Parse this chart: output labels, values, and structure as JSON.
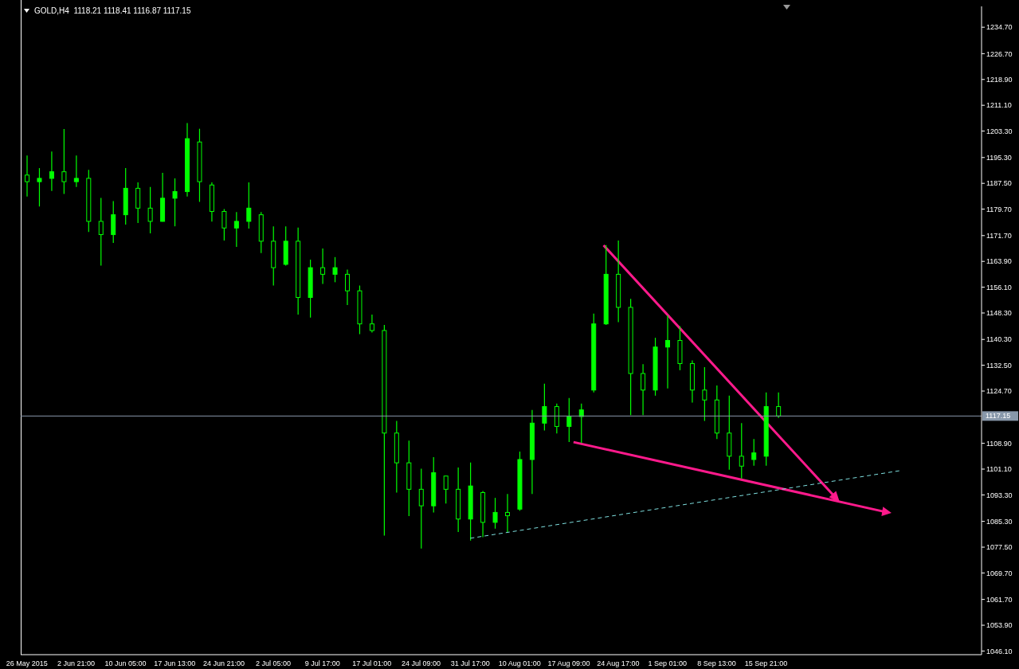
{
  "chart_data": {
    "type": "candlestick",
    "title": "GOLD,H4  1118.21 1118.41 1116.87 1117.15",
    "categories": [
      "26 May 2015",
      null,
      null,
      null,
      "2 Jun 21:00",
      null,
      null,
      null,
      "10 Jun 05:00",
      null,
      null,
      null,
      "17 Jun 13:00",
      null,
      null,
      null,
      "24 Jun 21:00",
      null,
      null,
      null,
      "2 Jul 05:00",
      null,
      null,
      null,
      "9 Jul 17:00",
      null,
      null,
      null,
      "17 Jul 01:00",
      null,
      null,
      null,
      "24 Jul 09:00",
      null,
      null,
      null,
      "31 Jul 17:00",
      null,
      null,
      null,
      "10 Aug 01:00",
      null,
      null,
      null,
      "17 Aug 09:00",
      null,
      null,
      null,
      "24 Aug 17:00",
      null,
      null,
      null,
      "1 Sep 01:00",
      null,
      null,
      null,
      "8 Sep 13:00",
      null,
      null,
      null,
      "15 Sep 21:00",
      null,
      null,
      null,
      null,
      null,
      null,
      null,
      null,
      null,
      null,
      null,
      null,
      null,
      null,
      null,
      null,
      null
    ],
    "color": "#00ff00",
    "ohlc": [
      [
        1190,
        1195.9,
        1183.5,
        1188
      ],
      [
        1188,
        1192.1,
        1180.5,
        1189
      ],
      [
        1189,
        1197.1,
        1185.2,
        1191
      ],
      [
        1191,
        1203.9,
        1184.3,
        1188
      ],
      [
        1188,
        1195.9,
        1186.4,
        1189
      ],
      [
        1189,
        1191.6,
        1172.8,
        1176
      ],
      [
        1176,
        1183.1,
        1162.6,
        1172
      ],
      [
        1172,
        1182.1,
        1169.5,
        1178
      ],
      [
        1178,
        1192.1,
        1175,
        1186
      ],
      [
        1186,
        1187.8,
        1175.5,
        1180
      ],
      [
        1180,
        1186.4,
        1172.4,
        1176
      ],
      [
        1176,
        1190.7,
        1175.9,
        1183
      ],
      [
        1183,
        1189,
        1174.5,
        1185
      ],
      [
        1185,
        1205.7,
        1183.5,
        1201
      ],
      [
        1200,
        1204,
        1181.9,
        1188
      ],
      [
        1187,
        1187.8,
        1175.9,
        1179
      ],
      [
        1179,
        1179.7,
        1170.2,
        1174
      ],
      [
        1174,
        1178.8,
        1168.3,
        1176
      ],
      [
        1176,
        1187.8,
        1173.8,
        1180
      ],
      [
        1178,
        1178.8,
        1166.4,
        1170
      ],
      [
        1170,
        1174.5,
        1156.6,
        1162
      ],
      [
        1163,
        1174.5,
        1162.6,
        1170
      ],
      [
        1170,
        1174.1,
        1147.8,
        1153
      ],
      [
        1153,
        1164.4,
        1146.9,
        1162
      ],
      [
        1162,
        1167.8,
        1157.1,
        1160
      ],
      [
        1160,
        1165.2,
        1157.6,
        1162
      ],
      [
        1160,
        1161.4,
        1150.7,
        1155
      ],
      [
        1155,
        1156.6,
        1141.9,
        1145
      ],
      [
        1145,
        1147.8,
        1142.4,
        1143
      ],
      [
        1143,
        1144.7,
        1081,
        1112
      ],
      [
        1112,
        1115.7,
        1094,
        1103
      ],
      [
        1103,
        1109.7,
        1086.9,
        1095
      ],
      [
        1095,
        1101.2,
        1077.1,
        1090
      ],
      [
        1090,
        1104.7,
        1088,
        1100
      ],
      [
        1099,
        1099.1,
        1090.7,
        1095
      ],
      [
        1095,
        1101.6,
        1082.1,
        1086
      ],
      [
        1086,
        1103.1,
        1079.5,
        1096
      ],
      [
        1094,
        1094.5,
        1080.5,
        1085
      ],
      [
        1085,
        1092.4,
        1083.1,
        1088
      ],
      [
        1088,
        1093.6,
        1082.1,
        1087
      ],
      [
        1089,
        1106.4,
        1088.5,
        1104
      ],
      [
        1104,
        1119,
        1093.6,
        1115
      ],
      [
        1115,
        1126.9,
        1112.8,
        1120
      ],
      [
        1120,
        1120.9,
        1111.9,
        1114
      ],
      [
        1114,
        1122.6,
        1109.3,
        1117
      ],
      [
        1117,
        1120.9,
        1109,
        1119
      ],
      [
        1125,
        1148.1,
        1124.3,
        1145
      ],
      [
        1145,
        1168.8,
        1144.7,
        1160
      ],
      [
        1160,
        1170.2,
        1145.5,
        1150
      ],
      [
        1150,
        1152.6,
        1117.4,
        1130
      ],
      [
        1130,
        1132.8,
        1117.4,
        1125
      ],
      [
        1125,
        1140.8,
        1123.3,
        1138
      ],
      [
        1138,
        1147.6,
        1125.5,
        1140
      ],
      [
        1140,
        1144.3,
        1131,
        1133
      ],
      [
        1133,
        1134,
        1121.2,
        1125
      ],
      [
        1125,
        1131.9,
        1115.7,
        1122
      ],
      [
        1122,
        1126.4,
        1110.2,
        1112
      ],
      [
        1112,
        1123.3,
        1100.9,
        1105
      ],
      [
        1105,
        1115,
        1098.3,
        1102
      ],
      [
        1104,
        1110.2,
        1102.1,
        1106
      ],
      [
        1105,
        1124.3,
        1102.1,
        1120
      ],
      [
        1120,
        1124.3,
        1116.6,
        1117.15
      ],
      null,
      null,
      null,
      null,
      null,
      null,
      null,
      null,
      null,
      null,
      null,
      null,
      null,
      null,
      null,
      null
    ],
    "ylim": [
      1045,
      1241
    ],
    "yticks": [
      {
        "value": 1046.1,
        "label": "1046.10"
      },
      {
        "value": 1053.9,
        "label": "1053.90"
      },
      {
        "value": 1061.7,
        "label": "1061.70"
      },
      {
        "value": 1069.7,
        "label": "1069.70"
      },
      {
        "value": 1077.5,
        "label": "1077.50"
      },
      {
        "value": 1085.3,
        "label": "1085.30"
      },
      {
        "value": 1093.3,
        "label": "1093.30"
      },
      {
        "value": 1101.1,
        "label": "1101.10"
      },
      {
        "value": 1108.9,
        "label": "1108.90"
      },
      {
        "value": 1124.7,
        "label": "1124.70"
      },
      {
        "value": 1132.5,
        "label": "1132.50"
      },
      {
        "value": 1140.3,
        "label": "1140.30"
      },
      {
        "value": 1148.3,
        "label": "1148.30"
      },
      {
        "value": 1156.1,
        "label": "1156.10"
      },
      {
        "value": 1163.9,
        "label": "1163.90"
      },
      {
        "value": 1171.7,
        "label": "1171.70"
      },
      {
        "value": 1179.7,
        "label": "1179.70"
      },
      {
        "value": 1187.5,
        "label": "1187.50"
      },
      {
        "value": 1195.3,
        "label": "1195.30"
      },
      {
        "value": 1203.3,
        "label": "1203.30"
      },
      {
        "value": 1211.1,
        "label": "1211.10"
      },
      {
        "value": 1218.9,
        "label": "1218.90"
      },
      {
        "value": 1226.7,
        "label": "1226.70"
      },
      {
        "value": 1234.7,
        "label": "1234.70"
      }
    ],
    "ref_lines": [
      {
        "axis": "y",
        "value": 1117.15,
        "label": "1117.15",
        "color": "#8898aa"
      }
    ],
    "series": [
      {
        "type": "line",
        "color": "#7fe0e0",
        "line_style": "dashed",
        "values": [
          null,
          null,
          null,
          null,
          null,
          null,
          null,
          null,
          null,
          null,
          null,
          null,
          null,
          null,
          null,
          null,
          null,
          null,
          null,
          null,
          null,
          null,
          null,
          null,
          null,
          null,
          null,
          null,
          null,
          null,
          null,
          null,
          null,
          null,
          null,
          null,
          1080.2,
          null,
          null,
          null,
          null,
          null,
          null,
          null,
          null,
          null,
          null,
          null,
          null,
          null,
          null,
          null,
          null,
          null,
          null,
          null,
          null,
          null,
          null,
          null,
          null,
          null,
          null,
          null,
          null,
          null,
          null,
          null,
          null,
          null,
          null,
          1100.7,
          null,
          null,
          null,
          null,
          null,
          null
        ]
      }
    ]
  }
}
